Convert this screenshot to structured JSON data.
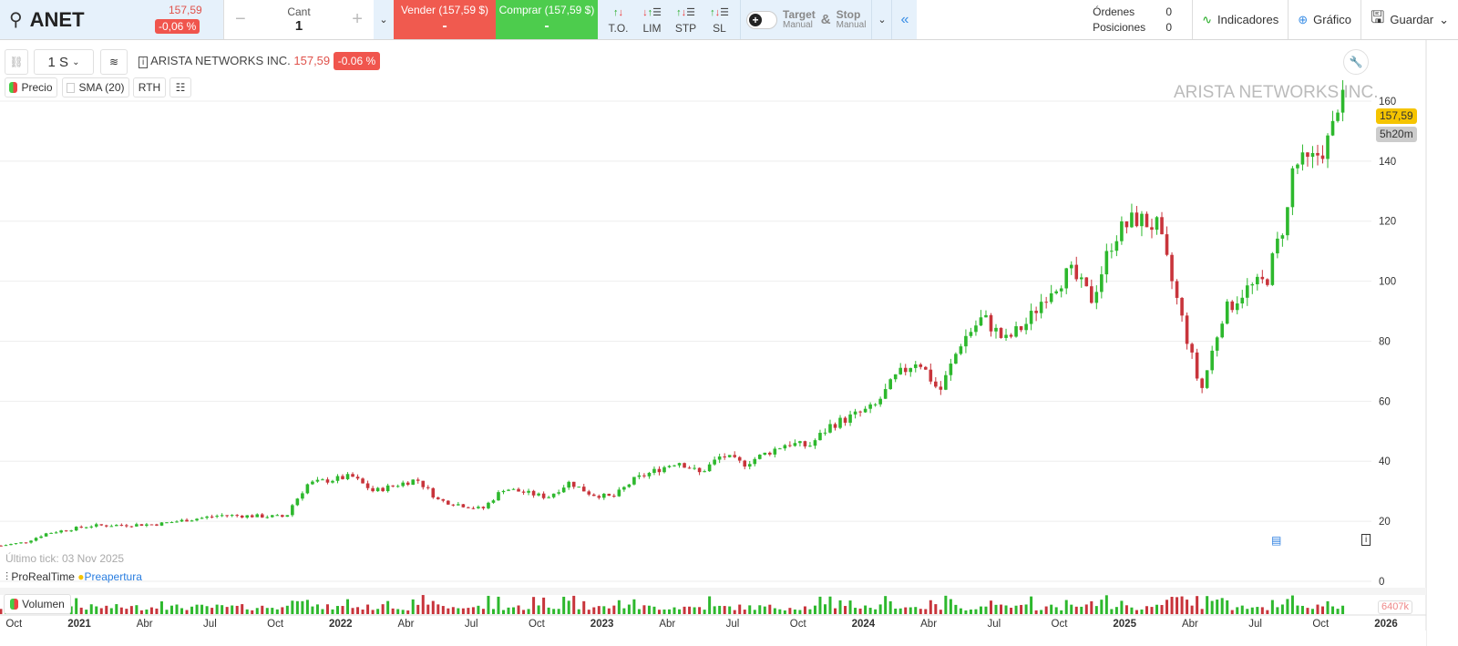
{
  "header": {
    "symbol": "ANET",
    "price": "157,59",
    "change": "-0,06 %",
    "qty_label": "Cant",
    "qty_value": "1",
    "sell_label": "Vender (157,59 $)",
    "sell_value": "-",
    "buy_label": "Comprar (157,59 $)",
    "buy_value": "-",
    "order_types": [
      "T.O.",
      "LIM",
      "STP",
      "SL"
    ],
    "target_label": "Target",
    "target_sub": "Manual",
    "amp": "&",
    "stop_label": "Stop",
    "stop_sub": "Manual",
    "collapse": "«",
    "orders_label": "Órdenes",
    "orders_value": "0",
    "positions_label": "Posiciones",
    "positions_value": "0",
    "indicators": "Indicadores",
    "chart": "Gráfico",
    "save": "Guardar"
  },
  "toolbar": {
    "timeframe": "1 S",
    "instrument": "ARISTA NETWORKS INC.",
    "price": "157,59",
    "change": "-0.06 %",
    "legend": [
      "Precio",
      "SMA (20)",
      "RTH"
    ]
  },
  "watermark": "ARISTA NETWORKS INC.",
  "last_tick": "Último tick: 03 Nov 2025",
  "brand": "ProRealTime",
  "session": "Preapertura",
  "volume_label": "Volumen",
  "volume_last": "6407k",
  "price_tag": "157,59",
  "countdown": "5h20m",
  "colors": {
    "up": "#2db82d",
    "down": "#c8343b",
    "accent": "#f5c400",
    "sell": "#f05a4f",
    "buy": "#4dcc4d"
  },
  "chart_data": {
    "type": "candlestick",
    "interval": "weekly",
    "y_ticks": [
      0,
      20,
      40,
      60,
      80,
      100,
      120,
      140,
      160
    ],
    "ylim": [
      0,
      160
    ],
    "x_ticks": [
      "Oct",
      "2021",
      "Abr",
      "Jul",
      "Oct",
      "2022",
      "Abr",
      "Jul",
      "Oct",
      "2023",
      "Abr",
      "Jul",
      "Oct",
      "2024",
      "Abr",
      "Jul",
      "Oct",
      "2025",
      "Abr",
      "Jul",
      "Oct",
      "2026"
    ],
    "close_samples": [
      [
        "2020-09",
        12
      ],
      [
        "2020-10",
        13
      ],
      [
        "2020-11",
        16
      ],
      [
        "2021-01",
        18.5
      ],
      [
        "2021-04",
        19
      ],
      [
        "2021-07",
        22
      ],
      [
        "2021-10",
        21.5
      ],
      [
        "2021-10",
        25
      ],
      [
        "2021-11",
        32.5
      ],
      [
        "2022-01",
        35
      ],
      [
        "2022-02",
        30
      ],
      [
        "2022-04",
        34
      ],
      [
        "2022-05",
        27
      ],
      [
        "2022-07",
        24
      ],
      [
        "2022-08",
        31
      ],
      [
        "2022-10",
        28
      ],
      [
        "2022-11",
        33
      ],
      [
        "2022-12",
        29
      ],
      [
        "2023-01",
        28
      ],
      [
        "2023-02",
        34
      ],
      [
        "2023-04",
        40
      ],
      [
        "2023-05",
        36
      ],
      [
        "2023-06",
        42
      ],
      [
        "2023-07",
        39
      ],
      [
        "2023-09",
        46
      ],
      [
        "2023-10",
        45
      ],
      [
        "2023-11",
        52
      ],
      [
        "2024-01",
        58
      ],
      [
        "2024-02",
        68
      ],
      [
        "2024-03",
        74
      ],
      [
        "2024-04",
        63
      ],
      [
        "2024-05",
        80
      ],
      [
        "2024-06",
        88
      ],
      [
        "2024-07",
        80
      ],
      [
        "2024-08",
        86
      ],
      [
        "2024-09",
        97
      ],
      [
        "2024-10",
        103
      ],
      [
        "2024-11",
        94
      ],
      [
        "2024-12",
        115
      ],
      [
        "2025-01",
        121
      ],
      [
        "2025-02",
        118
      ],
      [
        "2025-03",
        91
      ],
      [
        "2025-04",
        63
      ],
      [
        "2025-05",
        89
      ],
      [
        "2025-06",
        97
      ],
      [
        "2025-07",
        100
      ],
      [
        "2025-08",
        124
      ],
      [
        "2025-08",
        139
      ],
      [
        "2025-09",
        139
      ],
      [
        "2025-10",
        148
      ],
      [
        "2025-10",
        160
      ],
      [
        "2025-11",
        157.59
      ]
    ]
  }
}
